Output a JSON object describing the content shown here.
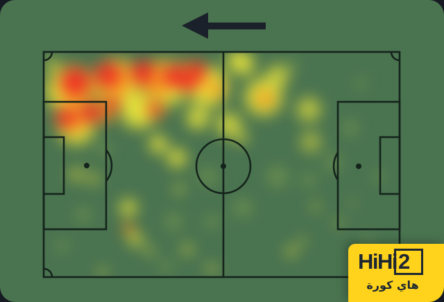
{
  "branding": {
    "logo_text_main": "HiHi",
    "logo_text_num": "2",
    "logo_subtext": "هاي كورة",
    "logo_bg": "#ffd21c",
    "logo_fg": "#1d2731"
  },
  "colors": {
    "page_background": "#161b23",
    "card_green": "#4a7350",
    "pitch_line": "#14231b",
    "arrow": "#1b212a"
  },
  "chart_data": {
    "type": "heatmap",
    "title": "",
    "attack_direction_arrow": "left",
    "palette": {
      "red": "#ee2b25",
      "orange": "#f5901f",
      "yellow": "#f3ec3a",
      "glow": "#a9c24d"
    },
    "heat_points": [
      {
        "x": 65.7,
        "y": 55.4,
        "r": 30,
        "c": "glow",
        "o": 0.3
      },
      {
        "x": 81.3,
        "y": 49.2,
        "r": 24,
        "c": "glow",
        "o": 0.3
      },
      {
        "x": 55.9,
        "y": 69.2,
        "r": 26,
        "c": "glow",
        "o": 0.3
      },
      {
        "x": 36.4,
        "y": 75.4,
        "r": 24,
        "c": "glow",
        "o": 0.3
      },
      {
        "x": 11.1,
        "y": 72.3,
        "r": 22,
        "c": "glow",
        "o": 0.3
      },
      {
        "x": 5.3,
        "y": 86.2,
        "r": 18,
        "c": "glow",
        "o": 0.3
      },
      {
        "x": 69.6,
        "y": 6.2,
        "r": 20,
        "c": "glow",
        "o": 0.3
      },
      {
        "x": 86.2,
        "y": 33.8,
        "r": 22,
        "c": "glow",
        "o": 0.3
      },
      {
        "x": 94.0,
        "y": 55.4,
        "r": 18,
        "c": "glow",
        "o": 0.25
      },
      {
        "x": 46.2,
        "y": 55.4,
        "r": 26,
        "c": "glow",
        "o": 0.3
      },
      {
        "x": 17.0,
        "y": 43.1,
        "r": 20,
        "c": "glow",
        "o": 0.3
      },
      {
        "x": 89.1,
        "y": 13.8,
        "r": 18,
        "c": "glow",
        "o": 0.25
      },
      {
        "x": 74.5,
        "y": 56.9,
        "r": 20,
        "c": "glow",
        "o": 0.3
      },
      {
        "x": 34.5,
        "y": 95.4,
        "r": 18,
        "c": "glow",
        "o": 0.3
      },
      {
        "x": 91.0,
        "y": 83.1,
        "r": 16,
        "c": "glow",
        "o": 0.25
      },
      {
        "x": 47.2,
        "y": 75.4,
        "r": 20,
        "c": "glow",
        "o": 0.3
      },
      {
        "x": 7.2,
        "y": 16.9,
        "r": 60,
        "c": "yellow",
        "o": 0.95
      },
      {
        "x": 20.9,
        "y": 13.8,
        "r": 60,
        "c": "yellow",
        "o": 0.95
      },
      {
        "x": 34.5,
        "y": 13.8,
        "r": 58,
        "c": "yellow",
        "o": 0.95
      },
      {
        "x": 46.2,
        "y": 15.4,
        "r": 52,
        "c": "yellow",
        "o": 0.95
      },
      {
        "x": 9.2,
        "y": 32.9,
        "r": 48,
        "c": "yellow",
        "o": 0.9
      },
      {
        "x": 26.7,
        "y": 26.2,
        "r": 46,
        "c": "yellow",
        "o": 0.9
      },
      {
        "x": 52.0,
        "y": 32.3,
        "r": 32,
        "c": "yellow",
        "o": 0.75
      },
      {
        "x": 61.8,
        "y": 20.0,
        "r": 48,
        "c": "yellow",
        "o": 0.9
      },
      {
        "x": 65.7,
        "y": 10.8,
        "r": 30,
        "c": "yellow",
        "o": 0.7
      },
      {
        "x": 74.5,
        "y": 25.5,
        "r": 32,
        "c": "yellow",
        "o": 0.65
      },
      {
        "x": 75.0,
        "y": 40.0,
        "r": 28,
        "c": "yellow",
        "o": 0.5
      },
      {
        "x": 55.9,
        "y": 5.2,
        "r": 30,
        "c": "yellow",
        "o": 0.85
      },
      {
        "x": 53.6,
        "y": 3.1,
        "r": 22,
        "c": "yellow",
        "o": 0.7
      },
      {
        "x": 43.3,
        "y": 29.2,
        "r": 30,
        "c": "yellow",
        "o": 0.8
      },
      {
        "x": 37.4,
        "y": 47.1,
        "r": 26,
        "c": "yellow",
        "o": 0.75
      },
      {
        "x": 32.2,
        "y": 40.9,
        "r": 24,
        "c": "yellow",
        "o": 0.8
      },
      {
        "x": 9.2,
        "y": 54.5,
        "r": 20,
        "c": "yellow",
        "o": 0.5
      },
      {
        "x": 14.0,
        "y": 56.3,
        "r": 18,
        "c": "yellow",
        "o": 0.45
      },
      {
        "x": 23.8,
        "y": 69.2,
        "r": 24,
        "c": "yellow",
        "o": 0.7
      },
      {
        "x": 25.7,
        "y": 83.1,
        "r": 20,
        "c": "yellow",
        "o": 0.65
      },
      {
        "x": 38.0,
        "y": 60.9,
        "r": 14,
        "c": "yellow",
        "o": 0.5
      },
      {
        "x": 40.4,
        "y": 87.7,
        "r": 16,
        "c": "yellow",
        "o": 0.5
      },
      {
        "x": 47.2,
        "y": 96.3,
        "r": 15,
        "c": "yellow",
        "o": 0.45
      },
      {
        "x": 69.6,
        "y": 88.6,
        "r": 15,
        "c": "yellow",
        "o": 0.55
      },
      {
        "x": 76.4,
        "y": 68.6,
        "r": 13,
        "c": "yellow",
        "o": 0.4
      },
      {
        "x": 72.7,
        "y": 84.0,
        "r": 12,
        "c": "yellow",
        "o": 0.4
      },
      {
        "x": 82.8,
        "y": 76.0,
        "r": 12,
        "c": "yellow",
        "o": 0.4
      },
      {
        "x": 86.7,
        "y": 66.8,
        "r": 10,
        "c": "yellow",
        "o": 0.3
      },
      {
        "x": 2.3,
        "y": 5.5,
        "r": 18,
        "c": "yellow",
        "o": 0.6
      },
      {
        "x": 55.6,
        "y": 37.8,
        "r": 20,
        "c": "yellow",
        "o": 0.5
      },
      {
        "x": 29.6,
        "y": 88.3,
        "r": 14,
        "c": "yellow",
        "o": 0.45
      },
      {
        "x": 16.6,
        "y": 97.5,
        "r": 13,
        "c": "yellow",
        "o": 0.45
      },
      {
        "x": 9.2,
        "y": 15.4,
        "r": 48,
        "c": "orange",
        "o": 0.9
      },
      {
        "x": 19.9,
        "y": 12.3,
        "r": 46,
        "c": "orange",
        "o": 0.9
      },
      {
        "x": 31.6,
        "y": 12.3,
        "r": 45,
        "c": "orange",
        "o": 0.9
      },
      {
        "x": 41.3,
        "y": 10.8,
        "r": 38,
        "c": "orange",
        "o": 0.9
      },
      {
        "x": 8.2,
        "y": 29.8,
        "r": 38,
        "c": "orange",
        "o": 0.85
      },
      {
        "x": 17.0,
        "y": 26.2,
        "r": 32,
        "c": "orange",
        "o": 0.8
      },
      {
        "x": 31.6,
        "y": 25.5,
        "r": 26,
        "c": "orange",
        "o": 0.7
      },
      {
        "x": 62.2,
        "y": 20.6,
        "r": 22,
        "c": "orange",
        "o": 0.85
      },
      {
        "x": 23.8,
        "y": 78.5,
        "r": 15,
        "c": "orange",
        "o": 0.8
      },
      {
        "x": 48.1,
        "y": 16.3,
        "r": 24,
        "c": "orange",
        "o": 0.7
      },
      {
        "x": 8.8,
        "y": 13.2,
        "r": 36,
        "c": "red",
        "o": 0.95
      },
      {
        "x": 17.9,
        "y": 10.2,
        "r": 32,
        "c": "red",
        "o": 0.95
      },
      {
        "x": 27.7,
        "y": 9.2,
        "r": 30,
        "c": "red",
        "o": 0.95
      },
      {
        "x": 36.8,
        "y": 10.8,
        "r": 30,
        "c": "red",
        "o": 0.95
      },
      {
        "x": 43.3,
        "y": 8.6,
        "r": 24,
        "c": "red",
        "o": 0.9
      },
      {
        "x": 40.7,
        "y": 13.8,
        "r": 22,
        "c": "red",
        "o": 0.9
      },
      {
        "x": 6.2,
        "y": 29.2,
        "r": 26,
        "c": "red",
        "o": 0.9
      },
      {
        "x": 13.1,
        "y": 27.1,
        "r": 26,
        "c": "red",
        "o": 0.9
      },
      {
        "x": 19.5,
        "y": 23.1,
        "r": 18,
        "c": "red",
        "o": 0.85
      },
      {
        "x": 31.0,
        "y": 25.5,
        "r": 16,
        "c": "red",
        "o": 0.8
      }
    ]
  }
}
